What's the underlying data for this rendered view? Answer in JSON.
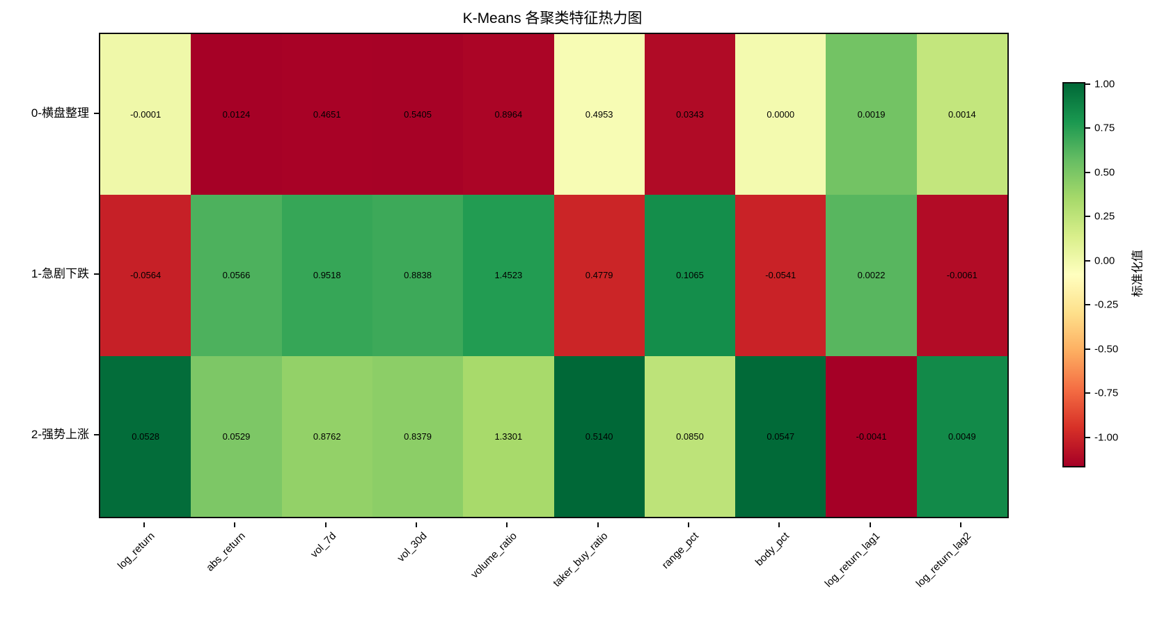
{
  "chart_data": {
    "type": "heatmap",
    "title": "K-Means 各聚类特征热力图",
    "rows": [
      "0-横盘整理",
      "1-急剧下跌",
      "2-强势上涨"
    ],
    "columns": [
      "log_return",
      "abs_return",
      "vol_7d",
      "vol_30d",
      "volume_ratio",
      "taker_buy_ratio",
      "range_pct",
      "body_pct",
      "log_return_lag1",
      "log_return_lag2"
    ],
    "values": [
      [
        "-0.0001",
        "0.0124",
        "0.4651",
        "0.5405",
        "0.8964",
        "0.4953",
        "0.0343",
        "0.0000",
        "0.0019",
        "0.0014"
      ],
      [
        "-0.0564",
        "0.0566",
        "0.9518",
        "0.8838",
        "1.4523",
        "0.4779",
        "0.1065",
        "-0.0541",
        "0.0022",
        "-0.0061"
      ],
      [
        "0.0528",
        "0.0529",
        "0.8762",
        "0.8379",
        "1.3301",
        "0.5140",
        "0.0850",
        "0.0547",
        "-0.0041",
        "0.0049"
      ]
    ],
    "annotation_text_color": "#000000",
    "color_normalization": "per-column z-score (ddof=1) mapped onto colormap over global z min/max",
    "colorbar": {
      "label": "标准化值",
      "tick_labels": [
        "1.00",
        "0.75",
        "0.50",
        "0.25",
        "0.00",
        "-0.25",
        "-0.50",
        "-0.75",
        "-1.00"
      ],
      "colormap": "RdYlGn",
      "colormap_stops": [
        "#a50026",
        "#d73027",
        "#f46d43",
        "#fdae61",
        "#fee08b",
        "#ffffbf",
        "#d9ef8b",
        "#a6d96a",
        "#66bd63",
        "#1a9850",
        "#006837"
      ]
    },
    "background": "#ffffff"
  }
}
